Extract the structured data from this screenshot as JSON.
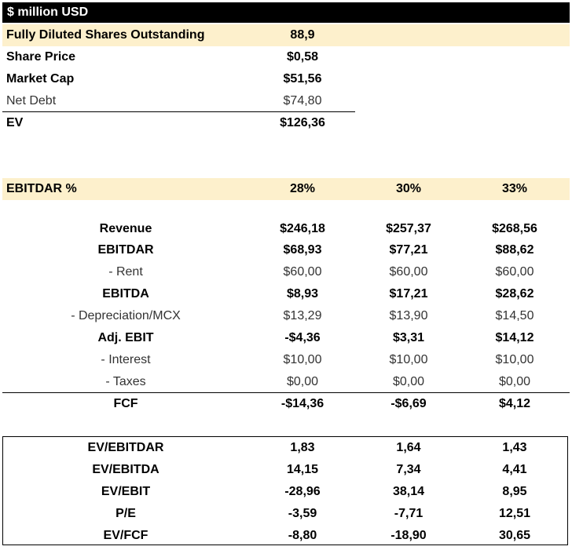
{
  "header": {
    "title": "$ million USD"
  },
  "summary": {
    "rows": [
      {
        "label": "Fully Diluted Shares Outstanding",
        "value": "88,9"
      },
      {
        "label": "Share Price",
        "value": "$0,58"
      },
      {
        "label": "Market Cap",
        "value": "$51,56"
      },
      {
        "label": "Net Debt",
        "value": "$74,80"
      },
      {
        "label": "EV",
        "value": "$126,36"
      }
    ]
  },
  "scenarios": {
    "label": "EBITDAR %",
    "values": [
      "28%",
      "30%",
      "33%"
    ]
  },
  "income": {
    "rows": [
      {
        "label": "Revenue",
        "values": [
          "$246,18",
          "$257,37",
          "$268,56"
        ]
      },
      {
        "label": "EBITDAR",
        "values": [
          "$68,93",
          "$77,21",
          "$88,62"
        ]
      },
      {
        "label": "- Rent",
        "values": [
          "$60,00",
          "$60,00",
          "$60,00"
        ]
      },
      {
        "label": "EBITDA",
        "values": [
          "$8,93",
          "$17,21",
          "$28,62"
        ]
      },
      {
        "label": "- Depreciation/MCX",
        "values": [
          "$13,29",
          "$13,90",
          "$14,50"
        ]
      },
      {
        "label": "Adj. EBIT",
        "values": [
          "-$4,36",
          "$3,31",
          "$14,12"
        ]
      },
      {
        "label": "- Interest",
        "values": [
          "$10,00",
          "$10,00",
          "$10,00"
        ]
      },
      {
        "label": "- Taxes",
        "values": [
          "$0,00",
          "$0,00",
          "$0,00"
        ]
      },
      {
        "label": "FCF",
        "values": [
          "-$14,36",
          "-$6,69",
          "$4,12"
        ]
      }
    ]
  },
  "multiples": {
    "rows": [
      {
        "label": "EV/EBITDAR",
        "values": [
          "1,83",
          "1,64",
          "1,43"
        ]
      },
      {
        "label": "EV/EBITDA",
        "values": [
          "14,15",
          "7,34",
          "4,41"
        ]
      },
      {
        "label": "EV/EBIT",
        "values": [
          "-28,96",
          "38,14",
          "8,95"
        ]
      },
      {
        "label": "P/E",
        "values": [
          "-3,59",
          "-7,71",
          "12,51"
        ]
      },
      {
        "label": "EV/FCF",
        "values": [
          "-8,80",
          "-18,90",
          "30,65"
        ]
      }
    ]
  }
}
